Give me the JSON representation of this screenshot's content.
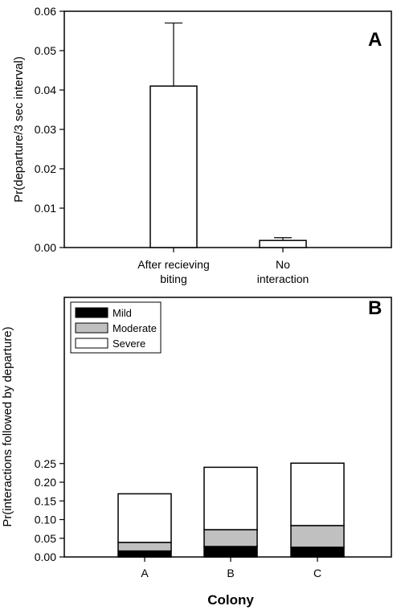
{
  "chart_data": [
    {
      "type": "bar",
      "panel_label": "A",
      "categories": [
        [
          "After recieving",
          "biting"
        ],
        [
          "No",
          "interaction"
        ]
      ],
      "values": [
        0.041,
        0.0018
      ],
      "error_upper": [
        0.057,
        0.0025
      ],
      "ylabel": "Pr(departure/3 sec interval)",
      "xlabel": "",
      "ylim": [
        0,
        0.06
      ],
      "yticks": [
        "0.00",
        "0.01",
        "0.02",
        "0.03",
        "0.04",
        "0.05",
        "0.06"
      ],
      "bar_color": "#ffffff",
      "grid": false
    },
    {
      "type": "bar",
      "stacked": true,
      "panel_label": "B",
      "categories": [
        "A",
        "B",
        "C"
      ],
      "series": [
        {
          "name": "Mild",
          "values": [
            0.016,
            0.028,
            0.026
          ],
          "color": "#000000"
        },
        {
          "name": "Moderate",
          "values": [
            0.023,
            0.045,
            0.058
          ],
          "color": "#c0c0c0"
        },
        {
          "name": "Severe",
          "values": [
            0.13,
            0.167,
            0.167
          ],
          "color": "#ffffff"
        }
      ],
      "xlabel": "Colony",
      "ylabel": "Pr(interactions followed by departure)",
      "ylim": [
        0,
        0.25
      ],
      "yticks": [
        "0.00",
        "0.05",
        "0.10",
        "0.15",
        "0.20",
        "0.25"
      ],
      "legend_position": "top-left",
      "grid": false
    }
  ]
}
